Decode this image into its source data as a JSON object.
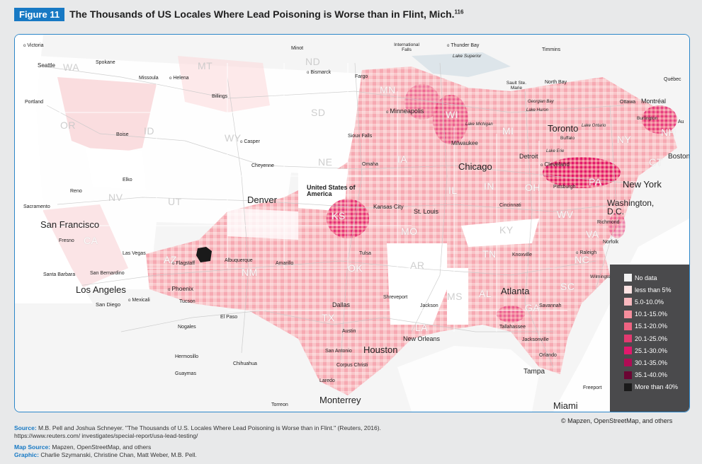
{
  "header": {
    "badge": "Figure 11",
    "title": "The Thousands of US Locales Where Lead Poisoning is Worse than in Flint, Mich.",
    "footnote": "116"
  },
  "legend": {
    "items": [
      {
        "label": "No data",
        "color": "#f2f2f2"
      },
      {
        "label": "less than 5%",
        "color": "#fde3e3"
      },
      {
        "label": "5.0-10.0%",
        "color": "#f9b9bf"
      },
      {
        "label": "10.1-15.0%",
        "color": "#f58e9c"
      },
      {
        "label": "15.1-20.0%",
        "color": "#ee6381"
      },
      {
        "label": "20.1-25.0%",
        "color": "#e23a70"
      },
      {
        "label": "25.1-30.0%",
        "color": "#e2186c"
      },
      {
        "label": "30.1-35.0%",
        "color": "#b00c55"
      },
      {
        "label": "35.1-40.0%",
        "color": "#6b0533"
      },
      {
        "label": "More than 40%",
        "color": "#1a1a1a"
      }
    ]
  },
  "states": [
    "WA",
    "MT",
    "ND",
    "MN",
    "OR",
    "ID",
    "WY",
    "SD",
    "WI",
    "MI",
    "NE",
    "IA",
    "NV",
    "UT",
    "IL",
    "IN",
    "OH",
    "PA",
    "NY",
    "CT",
    "NH",
    "KS",
    "MO",
    "KY",
    "WV",
    "VA",
    "CA",
    "AZ",
    "NM",
    "OK",
    "AR",
    "TN",
    "NC",
    "SC",
    "TX",
    "MS",
    "AL",
    "GA",
    "LA"
  ],
  "cities": {
    "big": [
      "San Francisco",
      "Los Angeles",
      "Denver",
      "Chicago",
      "Toronto",
      "New York",
      "Washington, D.C.",
      "Houston",
      "Atlanta",
      "Monterrey",
      "Miami"
    ],
    "medium": [
      "United States of America",
      "Minneapolis",
      "Boston",
      "Detroit",
      "Milwaukee",
      "Kansas City",
      "St. Louis",
      "Dallas",
      "New Orleans",
      "Phoenix",
      "Tampa",
      "Cleveland",
      "Pittsburgh",
      "Richmond",
      "Raleigh",
      "Montréal"
    ],
    "small": [
      "Victoria",
      "Seattle",
      "Spokane",
      "Portland",
      "Missoula",
      "Helena",
      "Billings",
      "Boise",
      "Minot",
      "Bismarck",
      "Fargo",
      "International Falls",
      "Thunder Bay",
      "Timmins",
      "Lake Superior",
      "Sault Ste. Marie",
      "North Bay",
      "Québec",
      "Georgian Bay",
      "Lake Huron",
      "Ottawa",
      "Lake Michigan",
      "Lake Ontario",
      "Burlington",
      "Buffalo",
      "Lake Erie",
      "Sioux Falls",
      "Casper",
      "Cheyenne",
      "Omaha",
      "Reno",
      "Elko",
      "Sacramento",
      "Fresno",
      "Las Vegas",
      "Flagstaff",
      "Albuquerque",
      "Amarillo",
      "Tulsa",
      "Santa Barbara",
      "San Bernardino",
      "San Diego",
      "Mexicali",
      "Tucson",
      "Nogales",
      "El Paso",
      "Shreveport",
      "Jackson",
      "Savannah",
      "Tallahassee",
      "Jacksonville",
      "Orlando",
      "Austin",
      "San Antonio",
      "Corpus Christi",
      "Laredo",
      "Hermosillo",
      "Chihuahua",
      "Guaymas",
      "Torreon",
      "Freeport",
      "Wilmington",
      "Knoxville",
      "Norfolk",
      "Cincinnati",
      "Au"
    ]
  },
  "credit": "© Mapzen, OpenStreetMap, and others",
  "source": {
    "label": "Source:",
    "text": "M.B. Pell and Joshua Schneyer. \"The Thousands of U.S. Locales Where Lead Poisoning is Worse than in Flint.\" (Reuters, 2016).",
    "url": "https://www.reuters.com/ investigates/special-report/usa-lead-testing/",
    "map_label": "Map Source:",
    "map_text": "Mapzen, OpenStreetMap, and others",
    "graphic_label": "Graphic:",
    "graphic_text": "Charlie Szymanski, Christine Chan, Matt Weber, M.B. Pell."
  }
}
